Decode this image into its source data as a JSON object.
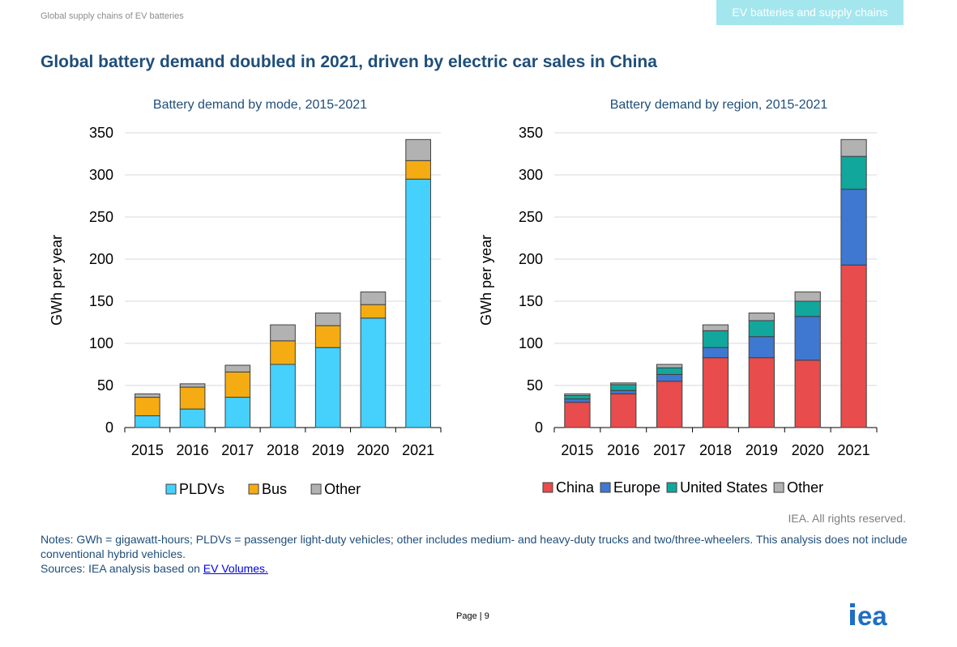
{
  "header": {
    "left_text": "Global supply chains of EV batteries",
    "tab_label": "EV batteries and supply chains"
  },
  "page_title": "Global battery demand doubled in 2021, driven by electric car sales in China",
  "colors": {
    "pldvs": "#45d1fb",
    "bus": "#f5ac12",
    "other": "#b2b2b2",
    "china": "#e84c4c",
    "europe": "#3f78d1",
    "united_states": "#11a79d",
    "region_other": "#b2b2b2"
  },
  "chart_data": [
    {
      "type": "bar",
      "stacked": true,
      "title": "Battery demand by mode, 2015-2021",
      "ylabel": "GWh per year",
      "xlabel": "",
      "categories": [
        "2015",
        "2016",
        "2017",
        "2018",
        "2019",
        "2020",
        "2021"
      ],
      "ylim": [
        0,
        350
      ],
      "yticks": [
        0,
        50,
        100,
        150,
        200,
        250,
        300,
        350
      ],
      "grid": true,
      "legend_position": "bottom",
      "series": [
        {
          "name": "PLDVs",
          "color": "#45d1fb",
          "values": [
            14,
            22,
            36,
            75,
            95,
            130,
            295
          ]
        },
        {
          "name": "Bus",
          "color": "#f5ac12",
          "values": [
            22,
            26,
            30,
            28,
            26,
            16,
            22
          ]
        },
        {
          "name": "Other",
          "color": "#b2b2b2",
          "values": [
            4,
            4,
            8,
            19,
            15,
            15,
            25
          ]
        }
      ]
    },
    {
      "type": "bar",
      "stacked": true,
      "title": "Battery demand by region, 2015-2021",
      "ylabel": "GWh per year",
      "xlabel": "",
      "categories": [
        "2015",
        "2016",
        "2017",
        "2018",
        "2019",
        "2020",
        "2021"
      ],
      "ylim": [
        0,
        350
      ],
      "yticks": [
        0,
        50,
        100,
        150,
        200,
        250,
        300,
        350
      ],
      "grid": true,
      "legend_position": "bottom",
      "series": [
        {
          "name": "China",
          "color": "#e84c4c",
          "values": [
            30,
            40,
            55,
            83,
            83,
            80,
            193
          ]
        },
        {
          "name": "Europe",
          "color": "#3f78d1",
          "values": [
            4,
            4,
            8,
            12,
            25,
            52,
            90
          ]
        },
        {
          "name": "United States",
          "color": "#11a79d",
          "values": [
            4,
            7,
            8,
            20,
            19,
            18,
            39
          ]
        },
        {
          "name": "Other",
          "color": "#b2b2b2",
          "values": [
            2,
            2,
            4,
            7,
            9,
            11,
            20
          ]
        }
      ]
    }
  ],
  "footer": {
    "rights": "IEA. All rights reserved.",
    "notes": "Notes: GWh = gigawatt-hours; PLDVs = passenger light-duty vehicles; other includes medium- and heavy-duty trucks and two/three-wheelers. This analysis does not include conventional hybrid vehicles.",
    "sources_prefix": "Sources: IEA analysis based on ",
    "sources_link": "EV Volumes.",
    "page_label": "Page",
    "page_separator": " | ",
    "page_number": "9"
  },
  "logo": {
    "text": "iea",
    "icon": "iea-logo-icon",
    "color": "#1f6fc3"
  }
}
